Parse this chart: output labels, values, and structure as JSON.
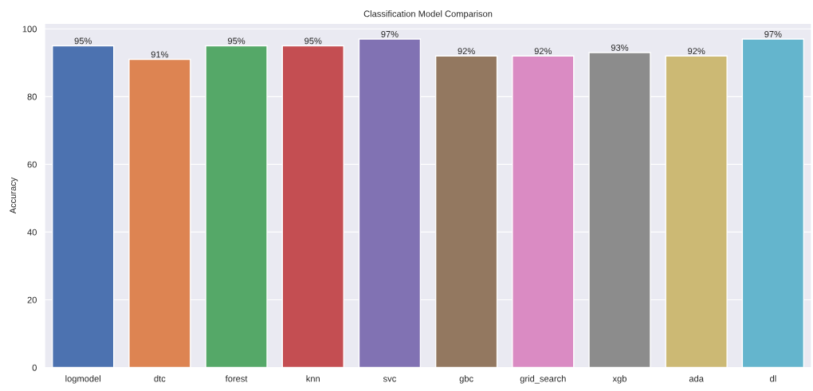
{
  "chart_data": {
    "type": "bar",
    "title": "Classification Model Comparison",
    "ylabel": "Accuracy",
    "categories": [
      "logmodel",
      "dtc",
      "forest",
      "knn",
      "svc",
      "gbc",
      "grid_search",
      "xgb",
      "ada",
      "dl"
    ],
    "values": [
      95,
      91,
      95,
      95,
      97,
      92,
      92,
      93,
      92,
      97
    ],
    "colors": [
      "#4c72b0",
      "#dd8452",
      "#55a868",
      "#c44e52",
      "#8172b3",
      "#937860",
      "#da8bc3",
      "#8c8c8c",
      "#ccb974",
      "#64b5cd"
    ],
    "value_labels": [
      "95%",
      "91%",
      "95%",
      "95%",
      "97%",
      "92%",
      "92%",
      "93%",
      "92%",
      "97%"
    ],
    "ylim": [
      0,
      101.6
    ],
    "yticks": [
      0,
      20,
      40,
      60,
      80,
      100
    ],
    "grid": "y"
  }
}
